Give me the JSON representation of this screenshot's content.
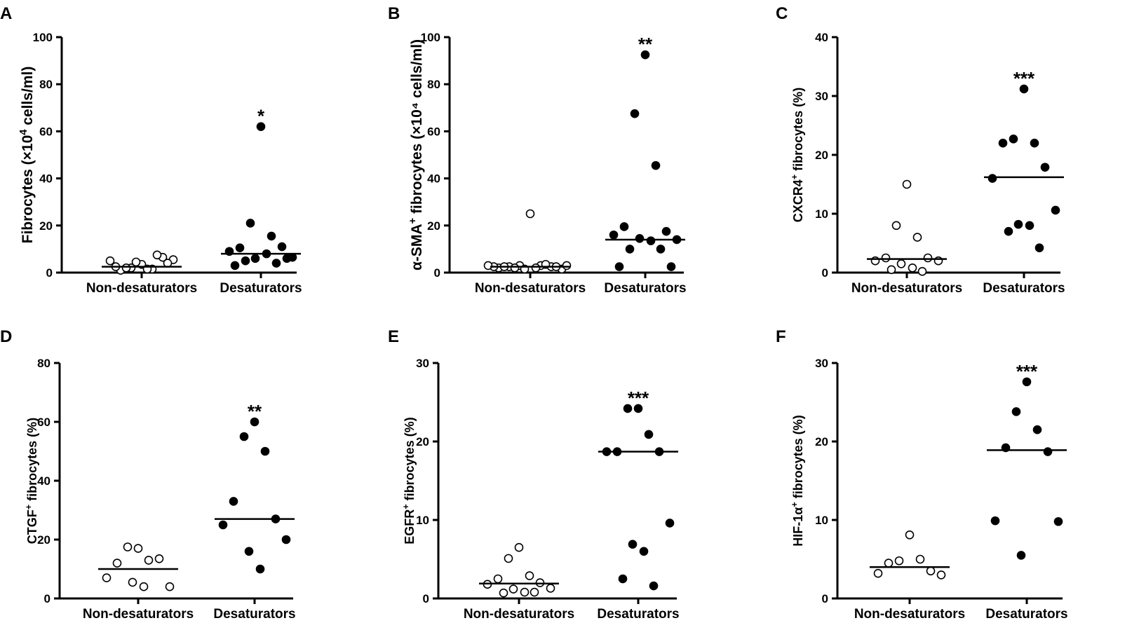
{
  "chart_data": [
    {
      "panel": "A",
      "type": "scatter",
      "ylabel_main": "Fibrocytes (×10",
      "ylabel_sup": "4",
      "ylabel_tail": " cells/ml)",
      "ylim": [
        0,
        100
      ],
      "yticks": [
        0,
        20,
        40,
        60,
        80,
        100
      ],
      "categories": [
        "Non-desaturators",
        "Desaturators"
      ],
      "series": [
        {
          "name": "Non-desaturators",
          "fill": "open",
          "median": 2.5,
          "values": [
            3.5,
            2,
            1.5,
            1,
            6.5,
            5,
            5.5,
            4.5,
            1.5,
            2,
            7.5,
            2.5,
            4
          ]
        },
        {
          "name": "Desaturators",
          "fill": "filled",
          "median": 8,
          "values": [
            62,
            21,
            15.5,
            10.5,
            11,
            9,
            6.5,
            6,
            8,
            5,
            4,
            3,
            6
          ]
        }
      ],
      "significance": "*"
    },
    {
      "panel": "B",
      "type": "scatter",
      "ylabel_main": "α-SMA",
      "ylabel_sup": "+",
      "ylabel_tail": " fibrocytes (×10⁴ cells/ml)",
      "ylim": [
        0,
        100
      ],
      "yticks": [
        0,
        20,
        40,
        60,
        80,
        100
      ],
      "categories": [
        "Non-desaturators",
        "Desaturators"
      ],
      "series": [
        {
          "name": "Non-desaturators",
          "fill": "open",
          "median": 2.5,
          "values": [
            25,
            3,
            3,
            2.5,
            2.5,
            2,
            1.5,
            1.5,
            2,
            2,
            3.5,
            2.5,
            2.5,
            2.5,
            3,
            3
          ]
        },
        {
          "name": "Desaturators",
          "fill": "filled",
          "median": 14,
          "values": [
            92.5,
            67.5,
            45.5,
            19.5,
            17.5,
            16,
            14,
            14.5,
            13.5,
            10,
            10,
            2.5,
            2.5
          ]
        }
      ],
      "significance": "**"
    },
    {
      "panel": "C",
      "type": "scatter",
      "ylabel_main": "CXCR4",
      "ylabel_sup": "+",
      "ylabel_tail": " fibrocytes (%)",
      "ylim": [
        0,
        40
      ],
      "yticks": [
        0,
        10,
        20,
        30,
        40
      ],
      "categories": [
        "Non-desaturators",
        "Desaturators"
      ],
      "series": [
        {
          "name": "Non-desaturators",
          "fill": "open",
          "median": 2.3,
          "values": [
            15,
            8,
            6,
            2.5,
            2.5,
            2,
            2,
            1.5,
            0.8,
            0.5,
            0.2
          ]
        },
        {
          "name": "Desaturators",
          "fill": "filled",
          "median": 16.2,
          "values": [
            31.2,
            22.7,
            22,
            22,
            17.9,
            16,
            10.6,
            8.2,
            8,
            7,
            4.2
          ]
        }
      ],
      "significance": "***"
    },
    {
      "panel": "D",
      "type": "scatter",
      "ylabel_main": "CTGF",
      "ylabel_sup": "+",
      "ylabel_tail": " fibrocytes (%)",
      "ylim": [
        0,
        80
      ],
      "yticks": [
        0,
        20,
        40,
        60,
        80
      ],
      "categories": [
        "Non-desaturators",
        "Desaturators"
      ],
      "series": [
        {
          "name": "Non-desaturators",
          "fill": "open",
          "median": 10,
          "values": [
            17,
            17.5,
            13,
            12,
            13.5,
            7,
            4,
            5.5,
            4
          ]
        },
        {
          "name": "Desaturators",
          "fill": "filled",
          "median": 27,
          "values": [
            60,
            55,
            50,
            33,
            27,
            25,
            20,
            16,
            10
          ]
        }
      ],
      "significance": "**"
    },
    {
      "panel": "E",
      "type": "scatter",
      "ylabel_main": "EGFR",
      "ylabel_sup": "+",
      "ylabel_tail": " fibrocytes (%)",
      "ylim": [
        0,
        30
      ],
      "yticks": [
        0,
        10,
        20,
        30
      ],
      "categories": [
        "Non-desaturators",
        "Desaturators"
      ],
      "series": [
        {
          "name": "Non-desaturators",
          "fill": "open",
          "median": 1.9,
          "values": [
            6.5,
            5.1,
            2.9,
            2.5,
            2,
            1.8,
            1.3,
            1.2,
            0.8,
            0.7,
            0.8
          ]
        },
        {
          "name": "Desaturators",
          "fill": "filled",
          "median": 18.7,
          "values": [
            24.2,
            24.2,
            20.9,
            18.7,
            18.7,
            18.7,
            9.6,
            6.9,
            6,
            2.5,
            1.6
          ]
        }
      ],
      "significance": "***"
    },
    {
      "panel": "F",
      "type": "scatter",
      "ylabel_main": "HIF-1α",
      "ylabel_sup": "+",
      "ylabel_tail": " fibrocytes (%)",
      "ylim": [
        0,
        30
      ],
      "yticks": [
        0,
        10,
        20,
        30
      ],
      "categories": [
        "Non-desaturators",
        "Desaturators"
      ],
      "series": [
        {
          "name": "Non-desaturators",
          "fill": "open",
          "median": 4,
          "values": [
            8.1,
            4.8,
            5,
            4.5,
            3.5,
            3.2,
            3
          ]
        },
        {
          "name": "Desaturators",
          "fill": "filled",
          "median": 18.9,
          "values": [
            27.6,
            23.8,
            21.5,
            19.2,
            18.7,
            9.9,
            9.8,
            5.5
          ]
        }
      ],
      "significance": "***"
    }
  ]
}
